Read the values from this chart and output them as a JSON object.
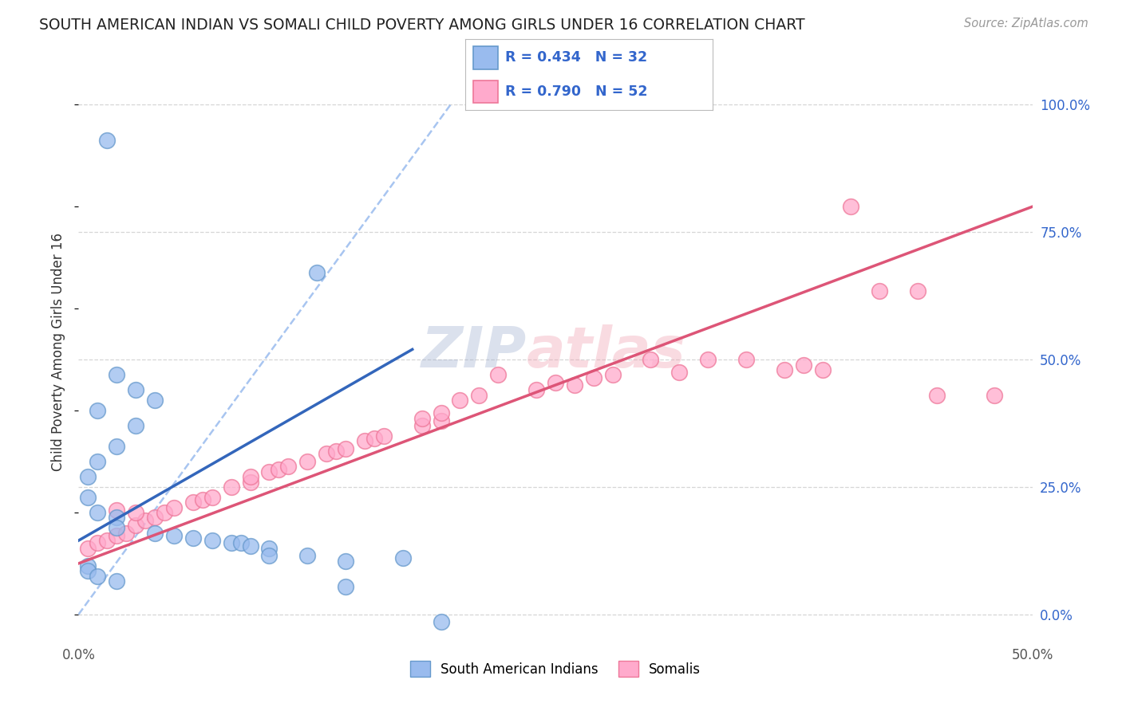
{
  "title": "SOUTH AMERICAN INDIAN VS SOMALI CHILD POVERTY AMONG GIRLS UNDER 16 CORRELATION CHART",
  "source": "Source: ZipAtlas.com",
  "ylabel": "Child Poverty Among Girls Under 16",
  "xlim": [
    0.0,
    0.5
  ],
  "ylim": [
    -0.05,
    1.08
  ],
  "y_ticks_right": [
    0.0,
    0.25,
    0.5,
    0.75,
    1.0
  ],
  "y_tick_labels_right": [
    "0.0%",
    "25.0%",
    "50.0%",
    "75.0%",
    "100.0%"
  ],
  "grid_color": "#cccccc",
  "watermark_zip": "ZIP",
  "watermark_atlas": "atlas",
  "background_color": "#ffffff",
  "blue_dot_color": "#99bbee",
  "blue_edge_color": "#6699cc",
  "pink_dot_color": "#ffaacc",
  "pink_edge_color": "#ee7799",
  "legend_label_blue": "South American Indians",
  "legend_label_pink": "Somalis",
  "blue_scatter_x": [
    0.015,
    0.125,
    0.02,
    0.03,
    0.04,
    0.01,
    0.03,
    0.02,
    0.01,
    0.005,
    0.005,
    0.01,
    0.02,
    0.02,
    0.04,
    0.05,
    0.06,
    0.07,
    0.08,
    0.085,
    0.09,
    0.1,
    0.1,
    0.12,
    0.14,
    0.17,
    0.005,
    0.005,
    0.01,
    0.02,
    0.14,
    0.19
  ],
  "blue_scatter_y": [
    0.93,
    0.67,
    0.47,
    0.44,
    0.42,
    0.4,
    0.37,
    0.33,
    0.3,
    0.27,
    0.23,
    0.2,
    0.19,
    0.17,
    0.16,
    0.155,
    0.15,
    0.145,
    0.14,
    0.14,
    0.135,
    0.13,
    0.115,
    0.115,
    0.105,
    0.11,
    0.095,
    0.085,
    0.075,
    0.065,
    0.055,
    -0.015
  ],
  "pink_scatter_x": [
    0.005,
    0.01,
    0.015,
    0.02,
    0.025,
    0.03,
    0.035,
    0.04,
    0.045,
    0.05,
    0.06,
    0.065,
    0.07,
    0.08,
    0.09,
    0.09,
    0.1,
    0.105,
    0.11,
    0.12,
    0.13,
    0.135,
    0.14,
    0.15,
    0.155,
    0.16,
    0.18,
    0.18,
    0.19,
    0.19,
    0.2,
    0.21,
    0.22,
    0.24,
    0.25,
    0.26,
    0.27,
    0.28,
    0.3,
    0.315,
    0.33,
    0.35,
    0.37,
    0.38,
    0.39,
    0.405,
    0.42,
    0.44,
    0.45,
    0.48,
    0.02,
    0.03
  ],
  "pink_scatter_y": [
    0.13,
    0.14,
    0.145,
    0.155,
    0.16,
    0.175,
    0.185,
    0.19,
    0.2,
    0.21,
    0.22,
    0.225,
    0.23,
    0.25,
    0.26,
    0.27,
    0.28,
    0.285,
    0.29,
    0.3,
    0.315,
    0.32,
    0.325,
    0.34,
    0.345,
    0.35,
    0.37,
    0.385,
    0.38,
    0.395,
    0.42,
    0.43,
    0.47,
    0.44,
    0.455,
    0.45,
    0.465,
    0.47,
    0.5,
    0.475,
    0.5,
    0.5,
    0.48,
    0.49,
    0.48,
    0.8,
    0.635,
    0.635,
    0.43,
    0.43,
    0.205,
    0.2
  ],
  "blue_line_x": [
    0.0,
    0.175
  ],
  "blue_line_y": [
    0.145,
    0.52
  ],
  "pink_line_x": [
    0.0,
    0.5
  ],
  "pink_line_y": [
    0.1,
    0.8
  ],
  "diag_line_x": [
    0.0,
    0.195
  ],
  "diag_line_y": [
    0.0,
    1.0
  ]
}
